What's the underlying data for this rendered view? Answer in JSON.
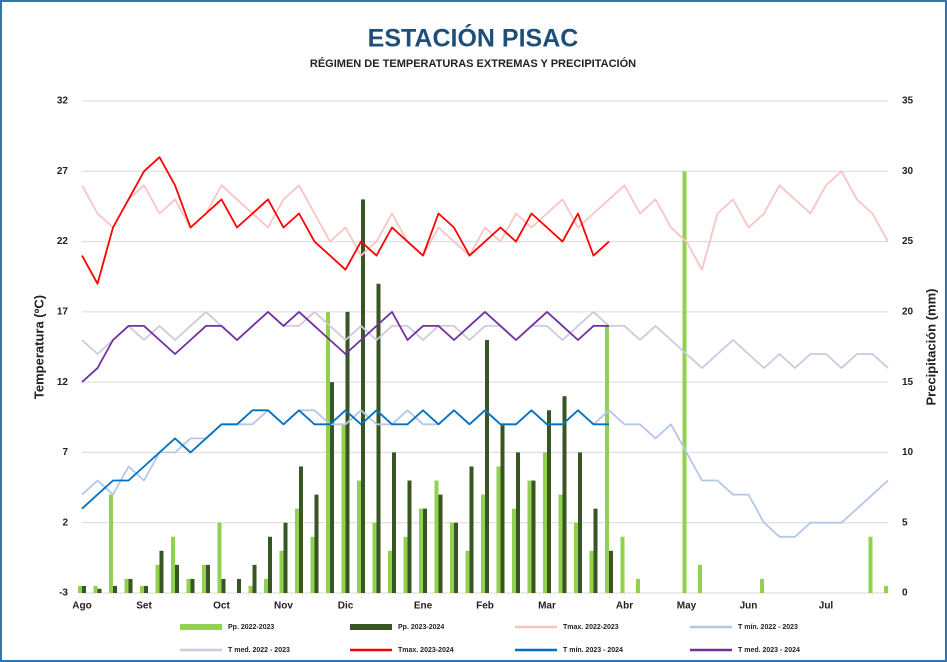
{
  "chart_data": {
    "type": "line",
    "title": "ESTACIÓN PISAC",
    "subtitle": "RÉGIMEN DE TEMPERATURAS EXTREMAS Y PRECIPITACIÓN",
    "y_label": "Temperatura (ºC)",
    "y2_label": "Precipitación (mm)",
    "categories": [
      "Ago",
      null,
      null,
      null,
      "Set",
      null,
      null,
      null,
      null,
      "Oct",
      null,
      null,
      null,
      "Nov",
      null,
      null,
      null,
      "Dic",
      null,
      null,
      null,
      null,
      "Ene",
      null,
      null,
      null,
      "Feb",
      null,
      null,
      null,
      "Mar",
      null,
      null,
      null,
      null,
      "Abr",
      null,
      null,
      null,
      "May",
      null,
      null,
      null,
      "Jun",
      null,
      null,
      null,
      null,
      "Jul",
      null,
      null,
      null,
      null
    ],
    "ylim": [
      -3,
      32
    ],
    "yticks": [
      -3,
      2,
      7,
      12,
      17,
      22,
      27,
      32
    ],
    "y2lim": [
      0,
      35
    ],
    "y2ticks": [
      0,
      5,
      10,
      15,
      20,
      25,
      30,
      35
    ],
    "grid": true,
    "series": [
      {
        "name": "Pp. 2022-2023",
        "type": "bar",
        "axis": "y2",
        "color": "#92d050",
        "values": [
          0.5,
          0.5,
          7,
          1,
          0.5,
          2,
          4,
          1,
          2,
          5,
          0,
          0.5,
          1,
          3,
          6,
          4,
          20,
          12,
          8,
          5,
          3,
          4,
          6,
          8,
          5,
          3,
          7,
          9,
          6,
          8,
          10,
          7,
          5,
          3,
          19,
          4,
          1,
          0,
          0,
          30,
          2,
          0,
          0,
          0,
          1,
          0,
          0,
          0,
          0,
          0,
          0,
          4,
          0.5
        ]
      },
      {
        "name": "Pp. 2023-2024",
        "type": "bar",
        "axis": "y2",
        "color": "#375623",
        "values": [
          0.5,
          0.3,
          0.5,
          1,
          0.5,
          3,
          2,
          1,
          2,
          1,
          1,
          2,
          4,
          5,
          9,
          7,
          15,
          20,
          28,
          22,
          10,
          8,
          6,
          7,
          5,
          9,
          18,
          12,
          10,
          8,
          13,
          14,
          10,
          6,
          3,
          null,
          null,
          null,
          null,
          null,
          null,
          null,
          null,
          null,
          null,
          null,
          null,
          null,
          null,
          null,
          null,
          null,
          null
        ]
      },
      {
        "name": "Tmax. 2022-2023",
        "type": "line",
        "color": "#f8c4c4",
        "values": [
          26,
          24,
          23,
          25,
          26,
          24,
          25,
          23,
          24,
          26,
          25,
          24,
          23,
          25,
          26,
          24,
          22,
          23,
          21,
          22,
          24,
          22,
          21,
          23,
          22,
          21,
          23,
          22,
          24,
          23,
          24,
          25,
          23,
          24,
          25,
          26,
          24,
          25,
          23,
          22,
          20,
          24,
          25,
          23,
          24,
          26,
          25,
          24,
          26,
          27,
          25,
          24,
          22
        ]
      },
      {
        "name": "T mín. 2022 - 2023",
        "type": "line",
        "color": "#b4c7e7",
        "values": [
          4,
          5,
          4,
          6,
          5,
          7,
          7,
          8,
          8,
          9,
          9,
          9,
          10,
          9,
          10,
          10,
          9,
          9,
          10,
          9,
          9,
          10,
          9,
          9,
          10,
          9,
          10,
          9,
          9,
          10,
          9,
          9,
          10,
          9,
          10,
          9,
          9,
          8,
          9,
          7,
          5,
          5,
          4,
          4,
          2,
          1,
          1,
          2,
          2,
          2,
          3,
          4,
          5
        ]
      },
      {
        "name": "T med. 2022 - 2023",
        "type": "line",
        "color": "#d0c8de",
        "values": [
          15,
          14,
          15,
          16,
          15,
          16,
          15,
          16,
          17,
          16,
          15,
          16,
          17,
          16,
          16,
          17,
          16,
          15,
          16,
          15,
          16,
          16,
          15,
          16,
          16,
          15,
          16,
          16,
          15,
          16,
          16,
          15,
          16,
          17,
          16,
          16,
          15,
          16,
          15,
          14,
          13,
          14,
          15,
          14,
          13,
          14,
          13,
          14,
          14,
          13,
          14,
          14,
          13
        ]
      },
      {
        "name": "Tmax. 2023-2024",
        "type": "line",
        "color": "#ff0000",
        "values": [
          21,
          19,
          23,
          25,
          27,
          28,
          26,
          23,
          24,
          25,
          23,
          24,
          25,
          23,
          24,
          22,
          21,
          20,
          22,
          21,
          23,
          22,
          21,
          24,
          23,
          21,
          22,
          23,
          22,
          24,
          23,
          22,
          24,
          21,
          22,
          null,
          null,
          null,
          null,
          null,
          null,
          null,
          null,
          null,
          null,
          null,
          null,
          null,
          null,
          null,
          null,
          null,
          null
        ]
      },
      {
        "name": "T mín. 2023 - 2024",
        "type": "line",
        "color": "#0070c0",
        "values": [
          3,
          4,
          5,
          5,
          6,
          7,
          8,
          7,
          8,
          9,
          9,
          10,
          10,
          9,
          10,
          9,
          9,
          10,
          9,
          10,
          9,
          9,
          10,
          9,
          10,
          9,
          10,
          9,
          9,
          10,
          9,
          9,
          10,
          9,
          9,
          null,
          null,
          null,
          null,
          null,
          null,
          null,
          null,
          null,
          null,
          null,
          null,
          null,
          null,
          null,
          null,
          null,
          null
        ]
      },
      {
        "name": "T med. 2023 - 2024",
        "type": "line",
        "color": "#7030a0",
        "values": [
          12,
          13,
          15,
          16,
          16,
          15,
          14,
          15,
          16,
          16,
          15,
          16,
          17,
          16,
          17,
          16,
          15,
          14,
          15,
          16,
          17,
          15,
          16,
          16,
          15,
          16,
          17,
          16,
          15,
          16,
          17,
          16,
          15,
          16,
          16,
          null,
          null,
          null,
          null,
          null,
          null,
          null,
          null,
          null,
          null,
          null,
          null,
          null,
          null,
          null,
          null,
          null,
          null
        ]
      }
    ]
  }
}
